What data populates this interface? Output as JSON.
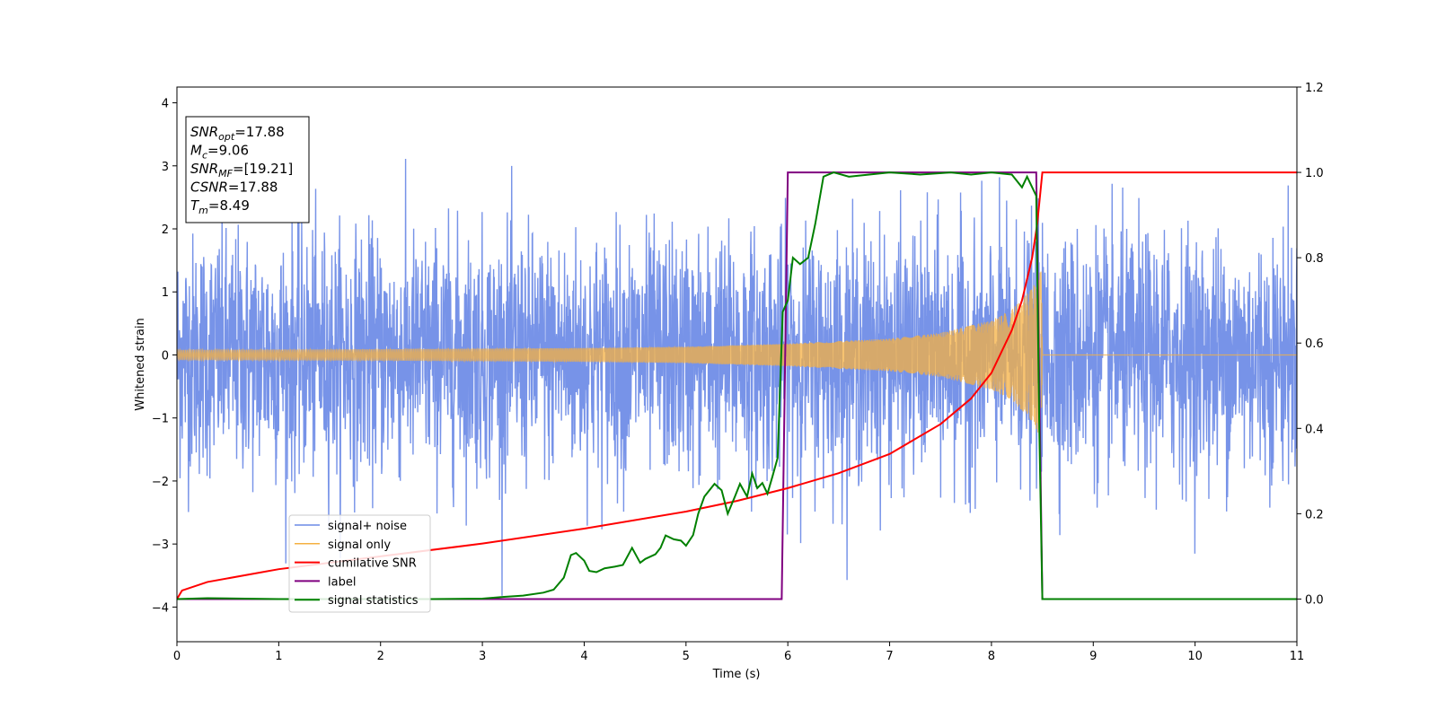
{
  "chart_data": {
    "type": "line",
    "xlabel": "Time (s)",
    "ylabel": "Whitened strain",
    "xlim": [
      0,
      11
    ],
    "ylim_left": [
      -4.55,
      4.25
    ],
    "ylim_right": [
      -0.1,
      1.2
    ],
    "x_ticks": [
      0,
      1,
      2,
      3,
      4,
      5,
      6,
      7,
      8,
      9,
      10,
      11
    ],
    "x_tick_labels": [
      "0",
      "1",
      "2",
      "3",
      "4",
      "5",
      "6",
      "7",
      "8",
      "9",
      "10",
      "11"
    ],
    "y_left_ticks": [
      -4,
      -3,
      -2,
      -1,
      0,
      1,
      2,
      3,
      4
    ],
    "y_left_tick_labels": [
      "−4",
      "−3",
      "−2",
      "−1",
      "0",
      "1",
      "2",
      "3",
      "4"
    ],
    "y_right_ticks": [
      0.0,
      0.2,
      0.4,
      0.6,
      0.8,
      1.0,
      1.2
    ],
    "y_right_tick_labels": [
      "0.0",
      "0.2",
      "0.4",
      "0.6",
      "0.8",
      "1.0",
      "1.2"
    ],
    "annotation": {
      "lines": [
        {
          "base": "SNR",
          "sub": "opt",
          "rest": "=17.88"
        },
        {
          "base": "M",
          "sub": "c",
          "rest": "=9.06"
        },
        {
          "base": "SNR",
          "sub": "MF",
          "rest": "=[19.21]"
        },
        {
          "base": "CSNR",
          "sub": "",
          "rest": "=17.88"
        },
        {
          "base": "T",
          "sub": "m",
          "rest": "=8.49"
        }
      ]
    },
    "legend": {
      "position": "lower-left",
      "entries": [
        {
          "label": "signal+ noise",
          "color": "#6b8ae6"
        },
        {
          "label": "signal only",
          "color": "#f5b041"
        },
        {
          "label": "cumilative SNR",
          "color": "#ff0000"
        },
        {
          "label": "label",
          "color": "#800080"
        },
        {
          "label": "signal statistics",
          "color": "#008000"
        }
      ]
    },
    "series": [
      {
        "name": "signal+ noise",
        "axis": "left",
        "color": "#6b8ae6",
        "description_values": {
          "std": 1.0,
          "min": -4.15,
          "max": 3.85,
          "x_range": [
            0,
            11
          ]
        }
      },
      {
        "name": "signal only",
        "axis": "left",
        "color": "#f5b041",
        "envelope": {
          "x": [
            0,
            2,
            4,
            5,
            6,
            7,
            7.5,
            8,
            8.2,
            8.4,
            8.49,
            8.5,
            11
          ],
          "amp": [
            0.08,
            0.09,
            0.11,
            0.13,
            0.18,
            0.26,
            0.35,
            0.55,
            0.72,
            1.05,
            1.35,
            0,
            0
          ]
        }
      },
      {
        "name": "cumilative SNR",
        "axis": "right",
        "color": "#ff0000",
        "x": [
          0,
          0.05,
          0.3,
          1,
          2,
          3,
          4,
          5,
          5.5,
          6,
          6.5,
          7,
          7.5,
          7.8,
          8,
          8.2,
          8.3,
          8.4,
          8.45,
          8.5,
          11
        ],
        "y": [
          0.0,
          0.02,
          0.04,
          0.07,
          0.1,
          0.13,
          0.165,
          0.205,
          0.23,
          0.26,
          0.295,
          0.34,
          0.41,
          0.47,
          0.53,
          0.63,
          0.7,
          0.8,
          0.88,
          1.0,
          1.0
        ]
      },
      {
        "name": "label",
        "axis": "right",
        "color": "#800080",
        "x": [
          0,
          5.94,
          6.0,
          8.44,
          8.5,
          11
        ],
        "y": [
          0,
          0,
          1,
          1,
          0,
          0
        ]
      },
      {
        "name": "signal statistics",
        "axis": "right",
        "color": "#008000",
        "x": [
          0,
          0.3,
          1,
          2,
          2.5,
          3,
          3.2,
          3.4,
          3.6,
          3.7,
          3.8,
          3.87,
          3.92,
          4.0,
          4.05,
          4.12,
          4.2,
          4.3,
          4.38,
          4.47,
          4.55,
          4.6,
          4.7,
          4.75,
          4.8,
          4.88,
          4.95,
          5.0,
          5.07,
          5.12,
          5.18,
          5.28,
          5.35,
          5.41,
          5.48,
          5.53,
          5.6,
          5.65,
          5.7,
          5.75,
          5.8,
          5.85,
          5.9,
          5.95,
          6.0,
          6.05,
          6.12,
          6.2,
          6.27,
          6.35,
          6.45,
          6.6,
          6.8,
          7.0,
          7.3,
          7.6,
          7.8,
          8.0,
          8.2,
          8.3,
          8.35,
          8.4,
          8.44,
          8.47,
          8.5,
          8.55,
          8.6,
          11
        ],
        "y": [
          0.0,
          0.002,
          0.0,
          0.0,
          0.0,
          0.001,
          0.005,
          0.008,
          0.015,
          0.022,
          0.05,
          0.103,
          0.108,
          0.09,
          0.066,
          0.063,
          0.072,
          0.076,
          0.08,
          0.12,
          0.085,
          0.094,
          0.105,
          0.12,
          0.149,
          0.14,
          0.137,
          0.125,
          0.15,
          0.2,
          0.24,
          0.27,
          0.255,
          0.2,
          0.24,
          0.27,
          0.24,
          0.294,
          0.26,
          0.272,
          0.247,
          0.288,
          0.331,
          0.673,
          0.7,
          0.8,
          0.785,
          0.8,
          0.88,
          0.99,
          1.0,
          0.99,
          0.995,
          1.0,
          0.995,
          1.0,
          0.995,
          1.0,
          0.995,
          0.965,
          0.99,
          0.965,
          0.945,
          0.4,
          0.0,
          0.0,
          0.0,
          0.0
        ]
      }
    ]
  }
}
